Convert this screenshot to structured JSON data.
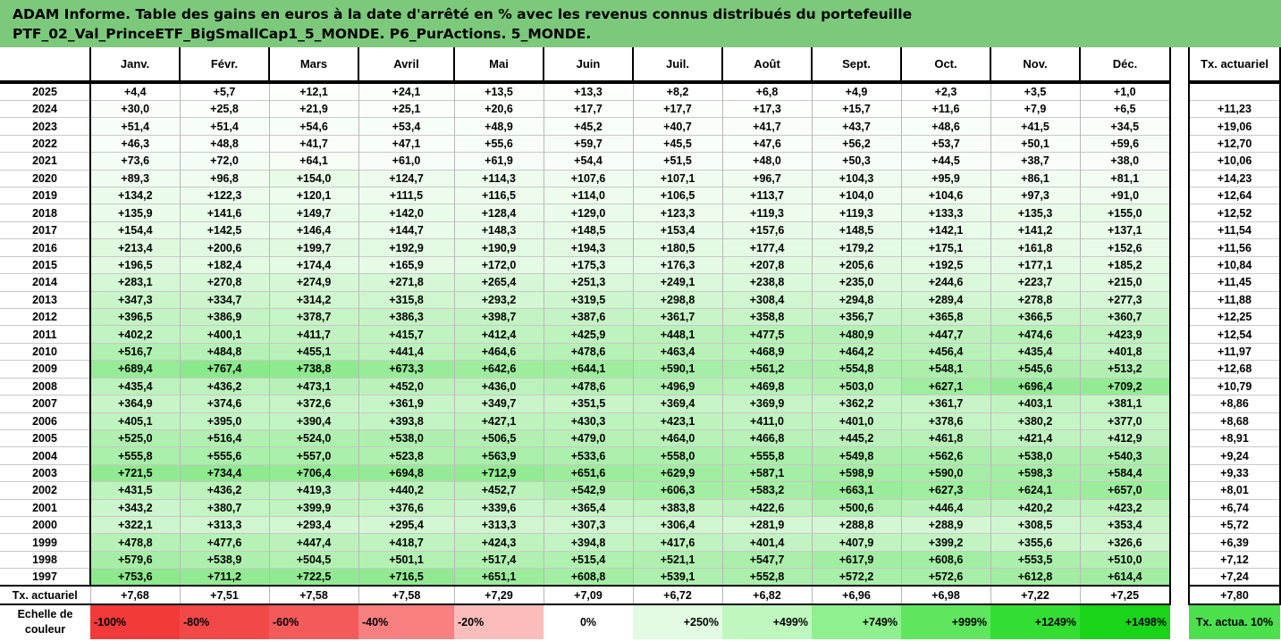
{
  "title": {
    "line1": "ADAM Informe. Table des gains en euros à la date d'arrêté en % avec les revenus connus distribués du portefeuille",
    "line2": "PTF_02_Val_PrinceETF_BigSmallCap1_5_MONDE. P6_PurActions. 5_MONDE."
  },
  "months": [
    "Janv.",
    "Févr.",
    "Mars",
    "Avril",
    "Mai",
    "Juin",
    "Juil.",
    "Août",
    "Sept.",
    "Oct.",
    "Nov.",
    "Déc."
  ],
  "annual_rate_header": "Tx. actuariel",
  "rows": [
    {
      "year": "2025",
      "values": [
        "+4,4",
        "+5,7",
        "+12,1",
        "+24,1",
        "+13,5",
        "+13,3",
        "+8,2",
        "+6,8",
        "+4,9",
        "+2,3",
        "+3,5",
        "+1,0"
      ],
      "rate": ""
    },
    {
      "year": "2024",
      "values": [
        "+30,0",
        "+25,8",
        "+21,9",
        "+25,1",
        "+20,6",
        "+17,7",
        "+17,7",
        "+17,3",
        "+15,7",
        "+11,6",
        "+7,9",
        "+6,5"
      ],
      "rate": "+11,23"
    },
    {
      "year": "2023",
      "values": [
        "+51,4",
        "+51,4",
        "+54,6",
        "+53,4",
        "+48,9",
        "+45,2",
        "+40,7",
        "+41,7",
        "+43,7",
        "+48,6",
        "+41,5",
        "+34,5"
      ],
      "rate": "+19,06"
    },
    {
      "year": "2022",
      "values": [
        "+46,3",
        "+48,8",
        "+41,7",
        "+47,1",
        "+55,6",
        "+59,7",
        "+45,5",
        "+47,6",
        "+56,2",
        "+53,7",
        "+50,1",
        "+59,6"
      ],
      "rate": "+12,70"
    },
    {
      "year": "2021",
      "values": [
        "+73,6",
        "+72,0",
        "+64,1",
        "+61,0",
        "+61,9",
        "+54,4",
        "+51,5",
        "+48,0",
        "+50,3",
        "+44,5",
        "+38,7",
        "+38,0"
      ],
      "rate": "+10,06"
    },
    {
      "year": "2020",
      "values": [
        "+89,3",
        "+96,8",
        "+154,0",
        "+124,7",
        "+114,3",
        "+107,6",
        "+107,1",
        "+96,7",
        "+104,3",
        "+95,9",
        "+86,1",
        "+81,1"
      ],
      "rate": "+14,23"
    },
    {
      "year": "2019",
      "values": [
        "+134,2",
        "+122,3",
        "+120,1",
        "+111,5",
        "+116,5",
        "+114,0",
        "+106,5",
        "+113,7",
        "+104,0",
        "+104,6",
        "+97,3",
        "+91,0"
      ],
      "rate": "+12,64"
    },
    {
      "year": "2018",
      "values": [
        "+135,9",
        "+141,6",
        "+149,7",
        "+142,0",
        "+128,4",
        "+129,0",
        "+123,3",
        "+119,3",
        "+119,3",
        "+133,3",
        "+135,3",
        "+155,0"
      ],
      "rate": "+12,52"
    },
    {
      "year": "2017",
      "values": [
        "+154,4",
        "+142,5",
        "+146,4",
        "+144,7",
        "+148,3",
        "+148,5",
        "+153,4",
        "+157,6",
        "+148,5",
        "+142,1",
        "+141,2",
        "+137,1"
      ],
      "rate": "+11,54"
    },
    {
      "year": "2016",
      "values": [
        "+213,4",
        "+200,6",
        "+199,7",
        "+192,9",
        "+190,9",
        "+194,3",
        "+180,5",
        "+177,4",
        "+179,2",
        "+175,1",
        "+161,8",
        "+152,6"
      ],
      "rate": "+11,56"
    },
    {
      "year": "2015",
      "values": [
        "+196,5",
        "+182,4",
        "+174,4",
        "+165,9",
        "+172,0",
        "+175,3",
        "+176,3",
        "+207,8",
        "+205,6",
        "+192,5",
        "+177,1",
        "+185,2"
      ],
      "rate": "+10,84"
    },
    {
      "year": "2014",
      "values": [
        "+283,1",
        "+270,8",
        "+274,9",
        "+271,8",
        "+265,4",
        "+251,3",
        "+249,1",
        "+238,8",
        "+235,0",
        "+244,6",
        "+223,7",
        "+215,0"
      ],
      "rate": "+11,45"
    },
    {
      "year": "2013",
      "values": [
        "+347,3",
        "+334,7",
        "+314,2",
        "+315,8",
        "+293,2",
        "+319,5",
        "+298,8",
        "+308,4",
        "+294,8",
        "+289,4",
        "+278,8",
        "+277,3"
      ],
      "rate": "+11,88"
    },
    {
      "year": "2012",
      "values": [
        "+396,5",
        "+386,9",
        "+378,7",
        "+386,3",
        "+398,7",
        "+387,6",
        "+361,7",
        "+358,8",
        "+356,7",
        "+365,8",
        "+366,5",
        "+360,7"
      ],
      "rate": "+12,25"
    },
    {
      "year": "2011",
      "values": [
        "+402,2",
        "+400,1",
        "+411,7",
        "+415,7",
        "+412,4",
        "+425,9",
        "+448,1",
        "+477,5",
        "+480,9",
        "+447,7",
        "+474,6",
        "+423,9"
      ],
      "rate": "+12,54"
    },
    {
      "year": "2010",
      "values": [
        "+516,7",
        "+484,8",
        "+455,1",
        "+441,4",
        "+464,6",
        "+478,6",
        "+463,4",
        "+468,9",
        "+464,2",
        "+456,4",
        "+435,4",
        "+401,8"
      ],
      "rate": "+11,97"
    },
    {
      "year": "2009",
      "values": [
        "+689,4",
        "+767,4",
        "+738,8",
        "+673,3",
        "+642,6",
        "+644,1",
        "+590,1",
        "+561,2",
        "+554,8",
        "+548,1",
        "+545,6",
        "+513,2"
      ],
      "rate": "+12,68"
    },
    {
      "year": "2008",
      "values": [
        "+435,4",
        "+436,2",
        "+473,1",
        "+452,0",
        "+436,0",
        "+478,6",
        "+496,9",
        "+469,8",
        "+503,0",
        "+627,1",
        "+696,4",
        "+709,2"
      ],
      "rate": "+10,79"
    },
    {
      "year": "2007",
      "values": [
        "+364,9",
        "+374,6",
        "+372,6",
        "+361,9",
        "+349,7",
        "+351,5",
        "+369,4",
        "+369,9",
        "+362,2",
        "+361,7",
        "+403,1",
        "+381,1"
      ],
      "rate": "+8,86"
    },
    {
      "year": "2006",
      "values": [
        "+405,1",
        "+395,0",
        "+390,4",
        "+393,8",
        "+427,1",
        "+430,3",
        "+423,1",
        "+411,0",
        "+401,0",
        "+378,6",
        "+380,2",
        "+377,0"
      ],
      "rate": "+8,68"
    },
    {
      "year": "2005",
      "values": [
        "+525,0",
        "+516,4",
        "+524,0",
        "+538,0",
        "+506,5",
        "+479,0",
        "+464,0",
        "+466,8",
        "+445,2",
        "+461,8",
        "+421,4",
        "+412,9"
      ],
      "rate": "+8,91"
    },
    {
      "year": "2004",
      "values": [
        "+555,8",
        "+555,6",
        "+557,0",
        "+523,8",
        "+563,9",
        "+533,6",
        "+558,0",
        "+555,8",
        "+549,8",
        "+562,6",
        "+538,0",
        "+540,3"
      ],
      "rate": "+9,24"
    },
    {
      "year": "2003",
      "values": [
        "+721,5",
        "+734,4",
        "+706,4",
        "+694,8",
        "+712,9",
        "+651,6",
        "+629,9",
        "+587,1",
        "+598,9",
        "+590,0",
        "+598,3",
        "+584,4"
      ],
      "rate": "+9,33"
    },
    {
      "year": "2002",
      "values": [
        "+431,5",
        "+436,2",
        "+419,3",
        "+440,2",
        "+452,7",
        "+542,9",
        "+606,3",
        "+583,2",
        "+663,1",
        "+627,3",
        "+624,1",
        "+657,0"
      ],
      "rate": "+8,01"
    },
    {
      "year": "2001",
      "values": [
        "+343,2",
        "+380,7",
        "+399,9",
        "+376,6",
        "+339,6",
        "+365,4",
        "+383,8",
        "+422,6",
        "+500,6",
        "+446,4",
        "+420,2",
        "+423,2"
      ],
      "rate": "+6,74"
    },
    {
      "year": "2000",
      "values": [
        "+322,1",
        "+313,3",
        "+293,4",
        "+295,4",
        "+313,3",
        "+307,3",
        "+306,4",
        "+281,9",
        "+288,8",
        "+288,9",
        "+308,5",
        "+353,4"
      ],
      "rate": "+5,72"
    },
    {
      "year": "1999",
      "values": [
        "+478,8",
        "+477,6",
        "+447,4",
        "+418,7",
        "+424,3",
        "+394,8",
        "+417,6",
        "+401,4",
        "+407,9",
        "+399,2",
        "+355,6",
        "+326,6"
      ],
      "rate": "+6,39"
    },
    {
      "year": "1998",
      "values": [
        "+579,6",
        "+538,9",
        "+504,5",
        "+501,1",
        "+517,4",
        "+515,4",
        "+521,1",
        "+547,7",
        "+617,9",
        "+608,6",
        "+553,5",
        "+510,0"
      ],
      "rate": "+7,12"
    },
    {
      "year": "1997",
      "values": [
        "+753,6",
        "+711,2",
        "+722,5",
        "+716,5",
        "+651,1",
        "+608,8",
        "+539,1",
        "+552,8",
        "+572,2",
        "+572,6",
        "+612,8",
        "+614,4"
      ],
      "rate": "+7,24"
    }
  ],
  "monthly_rates": {
    "label": "Tx. actuariel",
    "values": [
      "+7,68",
      "+7,51",
      "+7,58",
      "+7,58",
      "+7,29",
      "+7,09",
      "+6,72",
      "+6,82",
      "+6,96",
      "+6,98",
      "+7,22",
      "+7,25"
    ],
    "overall": "+7,80"
  },
  "color_scale": {
    "label": "Echelle de couleur",
    "steps": [
      {
        "label": "-100%",
        "color": "#f23a3a"
      },
      {
        "label": "-80%",
        "color": "#f24848"
      },
      {
        "label": "-60%",
        "color": "#f45a5a"
      },
      {
        "label": "-40%",
        "color": "#f88080"
      },
      {
        "label": "-20%",
        "color": "#fbbcbc"
      },
      {
        "label": "0%",
        "color": "#ffffff"
      },
      {
        "label": "+250%",
        "color": "#e2fbe2"
      },
      {
        "label": "+499%",
        "color": "#bff8bf"
      },
      {
        "label": "+749%",
        "color": "#8ff08f"
      },
      {
        "label": "+999%",
        "color": "#5ee65e"
      },
      {
        "label": "+1249%",
        "color": "#33de33"
      },
      {
        "label": "+1498%",
        "color": "#1ad41a"
      }
    ],
    "rate_label": "Tx. actua. 10%",
    "rate_color": "#4ce04c"
  }
}
